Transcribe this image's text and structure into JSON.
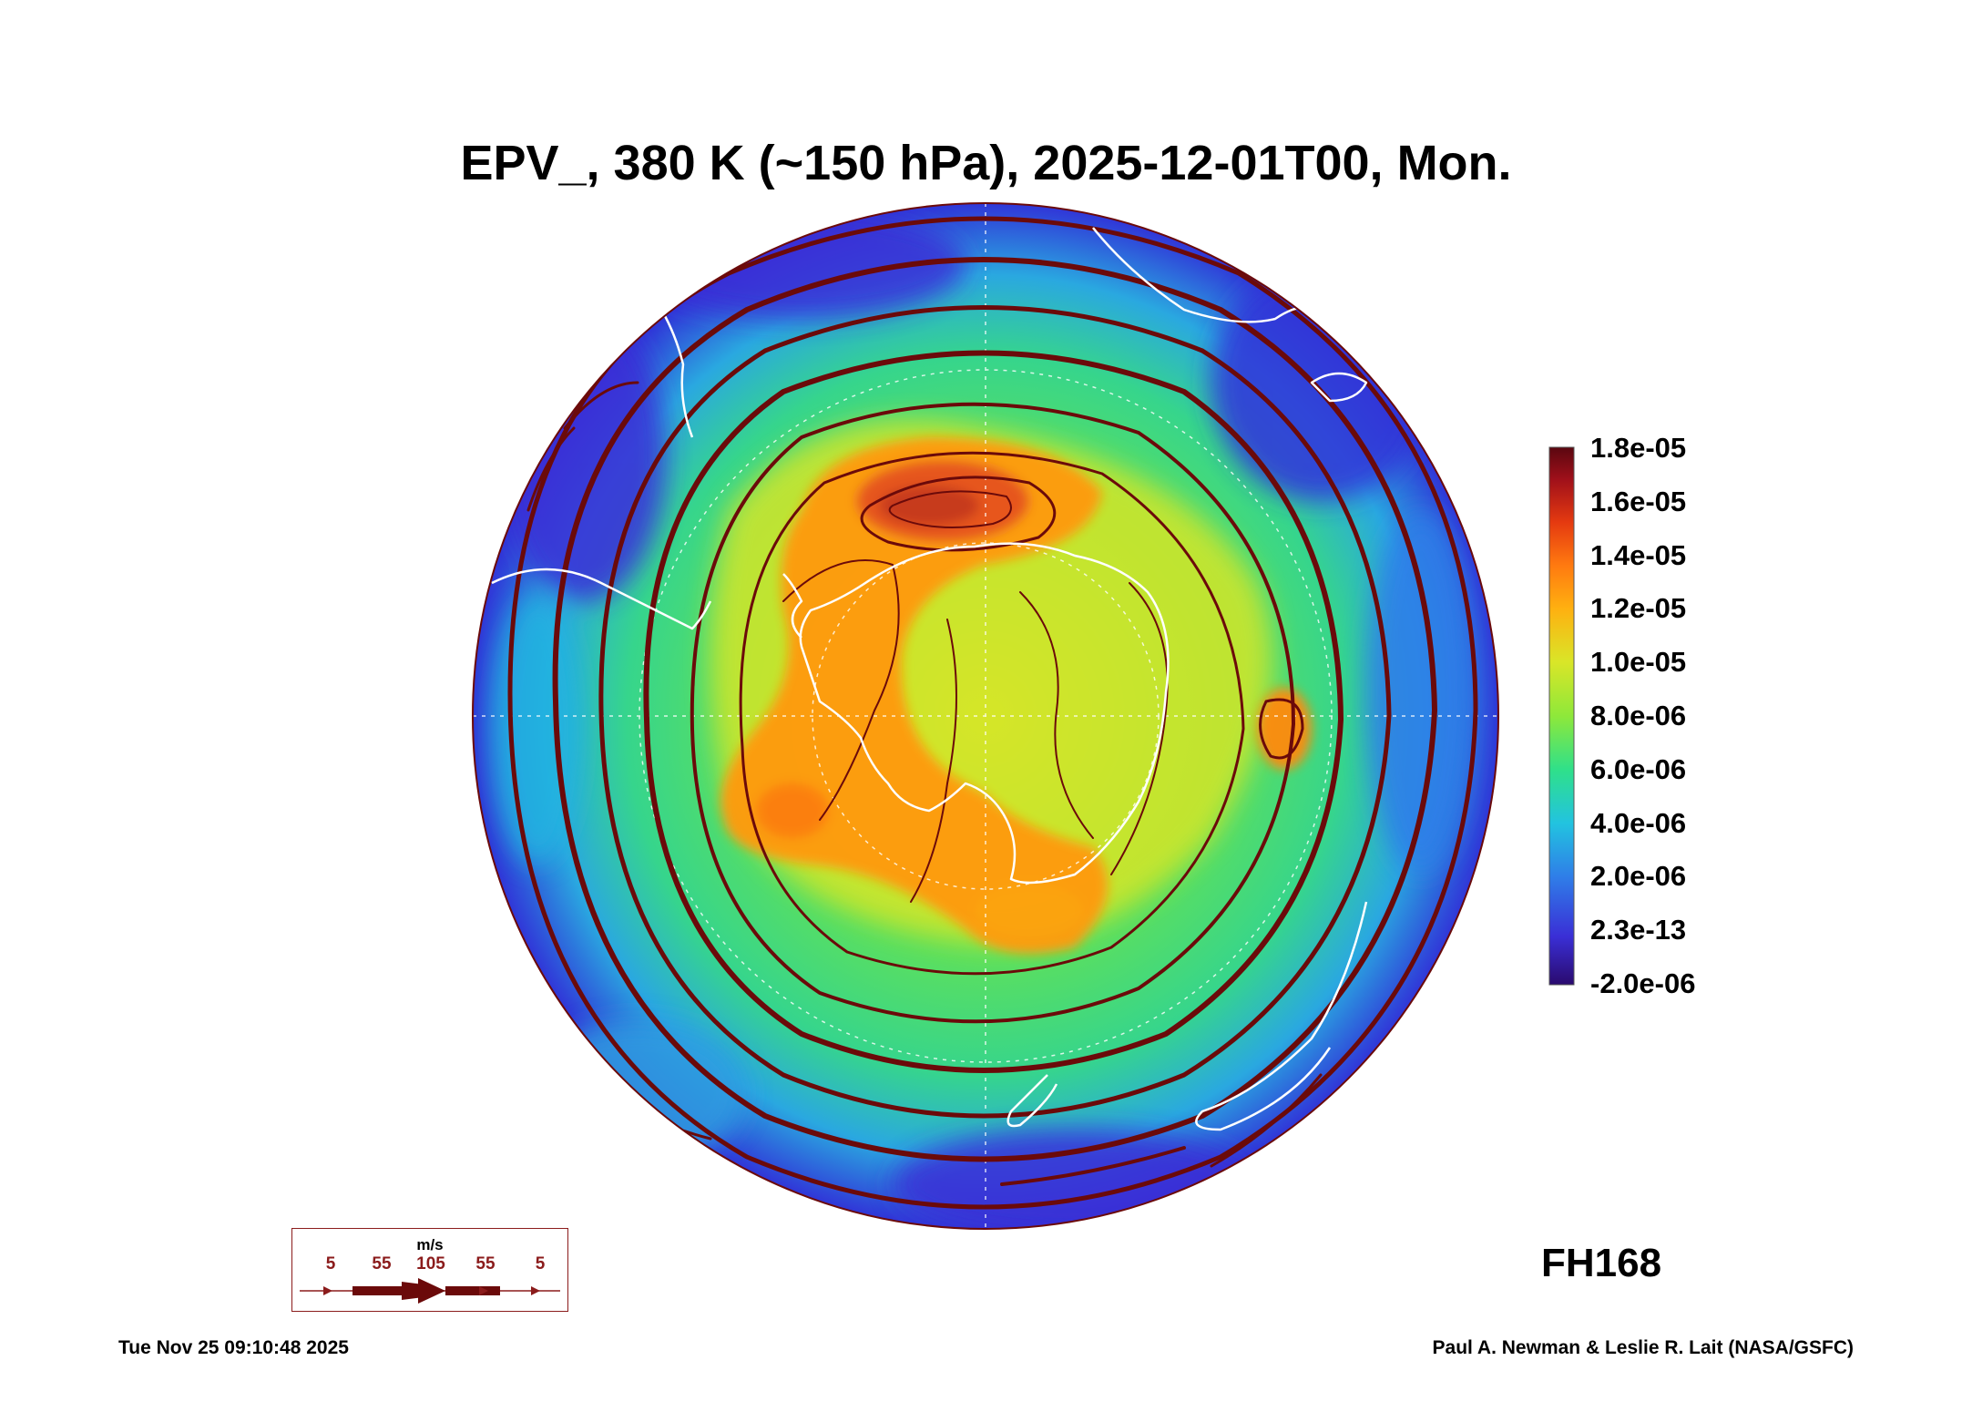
{
  "title": "EPV_, 380 K (~150 hPa), 2025-12-01T00, Mon.",
  "forecast_hour": "FH168",
  "footer": {
    "timestamp": "Tue Nov 25 09:10:48 2025",
    "credit": "Paul A. Newman & Leslie R. Lait (NASA/GSFC)"
  },
  "wind_legend": {
    "unit": "m/s",
    "labels": [
      "5",
      "55",
      "105",
      "55",
      "5"
    ]
  },
  "colors": {
    "streamline": "#6b0a0a",
    "coastline": "#ffffff",
    "wind_legend": "#8b1c1c"
  },
  "chart_data": {
    "type": "heatmap",
    "projection": "south-polar-stereographic",
    "title": "EPV_, 380 K (~150 hPa), 2025-12-01T00, Mon.",
    "colorbar": {
      "tick_labels": [
        "1.8e-05",
        "1.6e-05",
        "1.4e-05",
        "1.2e-05",
        "1.0e-05",
        "8.0e-06",
        "6.0e-06",
        "4.0e-06",
        "2.0e-06",
        "2.3e-13",
        "-2.0e-06"
      ],
      "tick_values": [
        1.8e-05,
        1.6e-05,
        1.4e-05,
        1.2e-05,
        1e-05,
        8e-06,
        6e-06,
        4e-06,
        2e-06,
        2.3e-13,
        -2e-06
      ],
      "range": [
        -2e-06,
        1.8e-05
      ],
      "colors": [
        "#2a0a6e",
        "#3a2fd6",
        "#2f7de8",
        "#22c3e0",
        "#2fe08a",
        "#8ee83a",
        "#d9e628",
        "#ffb010",
        "#ff7a10",
        "#e53a10",
        "#a0101a",
        "#5a0710"
      ]
    },
    "field": "Ertel potential vorticity at 380 K isentropic level with wind streamlines",
    "legend_placement": "right"
  }
}
